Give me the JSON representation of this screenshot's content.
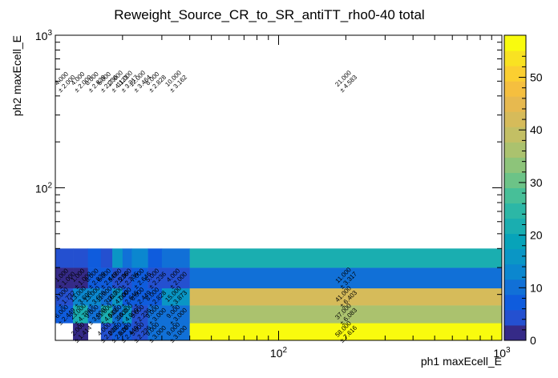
{
  "chart_data": {
    "type": "heatmap",
    "title": "Reweight_Source_CR_to_SR_antiTT_rho0-40 total",
    "xlabel": "ph1 maxEcell_E",
    "ylabel": "ph2 maxEcell_E",
    "x_scale": "log",
    "y_scale": "log",
    "xlim": [
      10,
      1000
    ],
    "ylim": [
      10,
      1000
    ],
    "x_tick_labels": [
      "10^{2}",
      "10^{3}"
    ],
    "y_tick_labels": [
      "10^{2}",
      "10^{3}"
    ],
    "colorbar": {
      "min": 0,
      "max": 58,
      "ticks": [
        0,
        10,
        20,
        30,
        40,
        50
      ]
    },
    "x_edges": [
      10,
      12,
      14,
      16,
      18,
      20,
      22,
      26,
      30,
      40,
      1000
    ],
    "y_edges": [
      10,
      13,
      17,
      22,
      30,
      40,
      1000
    ],
    "cells": [
      {
        "xi": 0,
        "yi": 0,
        "value": 0
      },
      {
        "xi": 1,
        "yi": 0,
        "value": 2,
        "error": "1.414"
      },
      {
        "xi": 2,
        "yi": 0,
        "value": 0
      },
      {
        "xi": 3,
        "yi": 0,
        "value": 4,
        "error": "2.000"
      },
      {
        "xi": 4,
        "yi": 0,
        "value": 8,
        "error": "2.828"
      },
      {
        "xi": 5,
        "yi": 0,
        "value": 6,
        "error": "2.449"
      },
      {
        "xi": 6,
        "yi": 0,
        "value": 5,
        "error": "2.236"
      },
      {
        "xi": 7,
        "yi": 0,
        "value": 9,
        "error": "3.000"
      },
      {
        "xi": 8,
        "yi": 0,
        "value": 9,
        "error": "3.000"
      },
      {
        "xi": 9,
        "yi": 0,
        "value": 58,
        "error": "7.616"
      },
      {
        "xi": 0,
        "yi": 1,
        "value": 6,
        "error": "2.449"
      },
      {
        "xi": 1,
        "yi": 1,
        "value": 23,
        "error": "4.796"
      },
      {
        "xi": 2,
        "yi": 1,
        "value": 9,
        "error": "3.000"
      },
      {
        "xi": 3,
        "yi": 1,
        "value": 21,
        "error": "4.583"
      },
      {
        "xi": 4,
        "yi": 1,
        "value": 9,
        "error": "3.000"
      },
      {
        "xi": 5,
        "yi": 1,
        "value": 16,
        "error": "4.000"
      },
      {
        "xi": 6,
        "yi": 1,
        "value": 5,
        "error": "2.236"
      },
      {
        "xi": 7,
        "yi": 1,
        "value": 9,
        "error": "3.000"
      },
      {
        "xi": 8,
        "yi": 1,
        "value": 9,
        "error": "3.000"
      },
      {
        "xi": 9,
        "yi": 1,
        "value": 37,
        "error": "6.083"
      },
      {
        "xi": 0,
        "yi": 2,
        "value": 3,
        "error": "1.732"
      },
      {
        "xi": 1,
        "yi": 2,
        "value": 13,
        "error": "3.606"
      },
      {
        "xi": 2,
        "yi": 2,
        "value": 13,
        "error": "3.606"
      },
      {
        "xi": 3,
        "yi": 2,
        "value": 11,
        "error": "3.317"
      },
      {
        "xi": 4,
        "yi": 2,
        "value": 16,
        "error": "4.000"
      },
      {
        "xi": 5,
        "yi": 2,
        "value": 7,
        "error": "2.646"
      },
      {
        "xi": 6,
        "yi": 2,
        "value": 6,
        "error": "2.449"
      },
      {
        "xi": 7,
        "yi": 2,
        "value": 8,
        "error": "2.828"
      },
      {
        "xi": 8,
        "yi": 2,
        "value": 15,
        "error": "3.873"
      },
      {
        "xi": 9,
        "yi": 2,
        "value": 41,
        "error": "6.403"
      },
      {
        "xi": 0,
        "yi": 3,
        "value": 1,
        "error": "1.000"
      },
      {
        "xi": 1,
        "yi": 3,
        "value": 1,
        "error": "1.000"
      },
      {
        "xi": 2,
        "yi": 3,
        "value": 8,
        "error": "2.828"
      },
      {
        "xi": 3,
        "yi": 3,
        "value": 6,
        "error": "2.449"
      },
      {
        "xi": 4,
        "yi": 3,
        "value": 5,
        "error": "2.236"
      },
      {
        "xi": 5,
        "yi": 3,
        "value": 5,
        "error": "2.236"
      },
      {
        "xi": 6,
        "yi": 3,
        "value": 7,
        "error": "2.646"
      },
      {
        "xi": 7,
        "yi": 3,
        "value": 5,
        "error": "2.236"
      },
      {
        "xi": 8,
        "yi": 3,
        "value": 4,
        "error": "2.000"
      },
      {
        "xi": 9,
        "yi": 3,
        "value": 11,
        "error": "3.317"
      },
      {
        "xi": 0,
        "yi": 4,
        "value": 4,
        "error": "2.000"
      },
      {
        "xi": 1,
        "yi": 4,
        "value": 4,
        "error": "2.000"
      },
      {
        "xi": 2,
        "yi": 4,
        "value": 8,
        "error": "2.828"
      },
      {
        "xi": 3,
        "yi": 4,
        "value": 5,
        "error": "2.236"
      },
      {
        "xi": 4,
        "yi": 4,
        "value": 17,
        "error": "4.123"
      },
      {
        "xi": 5,
        "yi": 4,
        "value": 11,
        "error": "3.317"
      },
      {
        "xi": 6,
        "yi": 4,
        "value": 12,
        "error": "3.464"
      },
      {
        "xi": 7,
        "yi": 4,
        "value": 8,
        "error": "2.828"
      },
      {
        "xi": 8,
        "yi": 4,
        "value": 10,
        "error": "3.162"
      },
      {
        "xi": 9,
        "yi": 4,
        "value": 21,
        "error": "4.583"
      }
    ],
    "bin_labels_shown": [
      {
        "xi": 1,
        "yi": 0
      },
      {
        "xi": 3,
        "yi": 0
      },
      {
        "xi": 4,
        "yi": 0
      },
      {
        "xi": 5,
        "yi": 0
      },
      {
        "xi": 6,
        "yi": 0
      },
      {
        "xi": 7,
        "yi": 0
      },
      {
        "xi": 8,
        "yi": 0
      },
      {
        "xi": 9,
        "yi": 0
      },
      {
        "xi": 0,
        "yi": 1
      },
      {
        "xi": 1,
        "yi": 1
      },
      {
        "xi": 2,
        "yi": 1
      },
      {
        "xi": 3,
        "yi": 1
      },
      {
        "xi": 4,
        "yi": 1
      },
      {
        "xi": 5,
        "yi": 1
      },
      {
        "xi": 6,
        "yi": 1
      },
      {
        "xi": 7,
        "yi": 1
      },
      {
        "xi": 8,
        "yi": 1
      },
      {
        "xi": 9,
        "yi": 1
      },
      {
        "xi": 0,
        "yi": 2
      },
      {
        "xi": 1,
        "yi": 2
      },
      {
        "xi": 2,
        "yi": 2
      },
      {
        "xi": 3,
        "yi": 2
      },
      {
        "xi": 4,
        "yi": 2
      },
      {
        "xi": 5,
        "yi": 2
      },
      {
        "xi": 6,
        "yi": 2
      },
      {
        "xi": 7,
        "yi": 2
      },
      {
        "xi": 8,
        "yi": 2
      },
      {
        "xi": 9,
        "yi": 2
      },
      {
        "xi": 0,
        "yi": 3
      },
      {
        "xi": 1,
        "yi": 3
      },
      {
        "xi": 2,
        "yi": 3
      },
      {
        "xi": 3,
        "yi": 3
      },
      {
        "xi": 4,
        "yi": 3
      },
      {
        "xi": 5,
        "yi": 3
      },
      {
        "xi": 6,
        "yi": 3
      },
      {
        "xi": 7,
        "yi": 3
      },
      {
        "xi": 8,
        "yi": 3
      },
      {
        "xi": 9,
        "yi": 3
      },
      {
        "xi": 0,
        "yi": 4
      },
      {
        "xi": 1,
        "yi": 4
      },
      {
        "xi": 2,
        "yi": 4
      },
      {
        "xi": 3,
        "yi": 4
      },
      {
        "xi": 4,
        "yi": 4
      },
      {
        "xi": 5,
        "yi": 4
      },
      {
        "xi": 6,
        "yi": 4
      },
      {
        "xi": 7,
        "yi": 4
      },
      {
        "xi": 8,
        "yi": 4
      },
      {
        "xi": 9,
        "yi": 4
      }
    ],
    "colormap": [
      "#352a87",
      "#2450d0",
      "#0f5cdd",
      "#1170d7",
      "#0b87cf",
      "#0a96c5",
      "#07a3b9",
      "#1aaeb0",
      "#2cb7a6",
      "#47bf98",
      "#6cc387",
      "#8dc47a",
      "#abc26e",
      "#c3bf64",
      "#d6bb5a",
      "#e7b94f",
      "#f5bf3f",
      "#fbcf31",
      "#f9e222",
      "#f9fb0e"
    ]
  }
}
